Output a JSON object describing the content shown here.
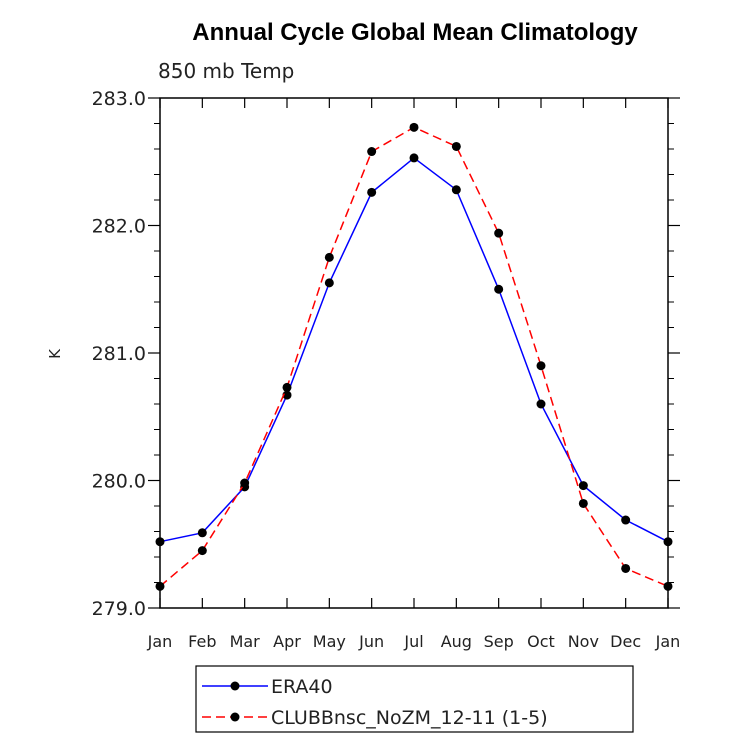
{
  "chart_data": {
    "type": "line",
    "title": "Annual Cycle Global Mean Climatology",
    "subtitle": "850 mb Temp",
    "ylabel": "K",
    "xlabel": "",
    "categories": [
      "Jan",
      "Feb",
      "Mar",
      "Apr",
      "May",
      "Jun",
      "Jul",
      "Aug",
      "Sep",
      "Oct",
      "Nov",
      "Dec",
      "Jan"
    ],
    "ylim": [
      279.0,
      283.0
    ],
    "yticks": [
      "279.0",
      "280.0",
      "281.0",
      "282.0",
      "283.0"
    ],
    "grid": false,
    "legend_position": "bottom",
    "series": [
      {
        "name": "ERA40",
        "color": "#0000ff",
        "dash": "solid",
        "values": [
          279.52,
          279.59,
          279.95,
          280.67,
          281.55,
          282.26,
          282.53,
          282.28,
          281.5,
          280.6,
          279.96,
          279.69,
          279.52
        ]
      },
      {
        "name": "CLUBBnsc_NoZM_12-11 (1-5)",
        "color": "#ff0000",
        "dash": "dashed",
        "values": [
          279.17,
          279.45,
          279.98,
          280.73,
          281.75,
          282.58,
          282.77,
          282.62,
          281.94,
          280.9,
          279.82,
          279.31,
          279.17
        ]
      }
    ]
  }
}
